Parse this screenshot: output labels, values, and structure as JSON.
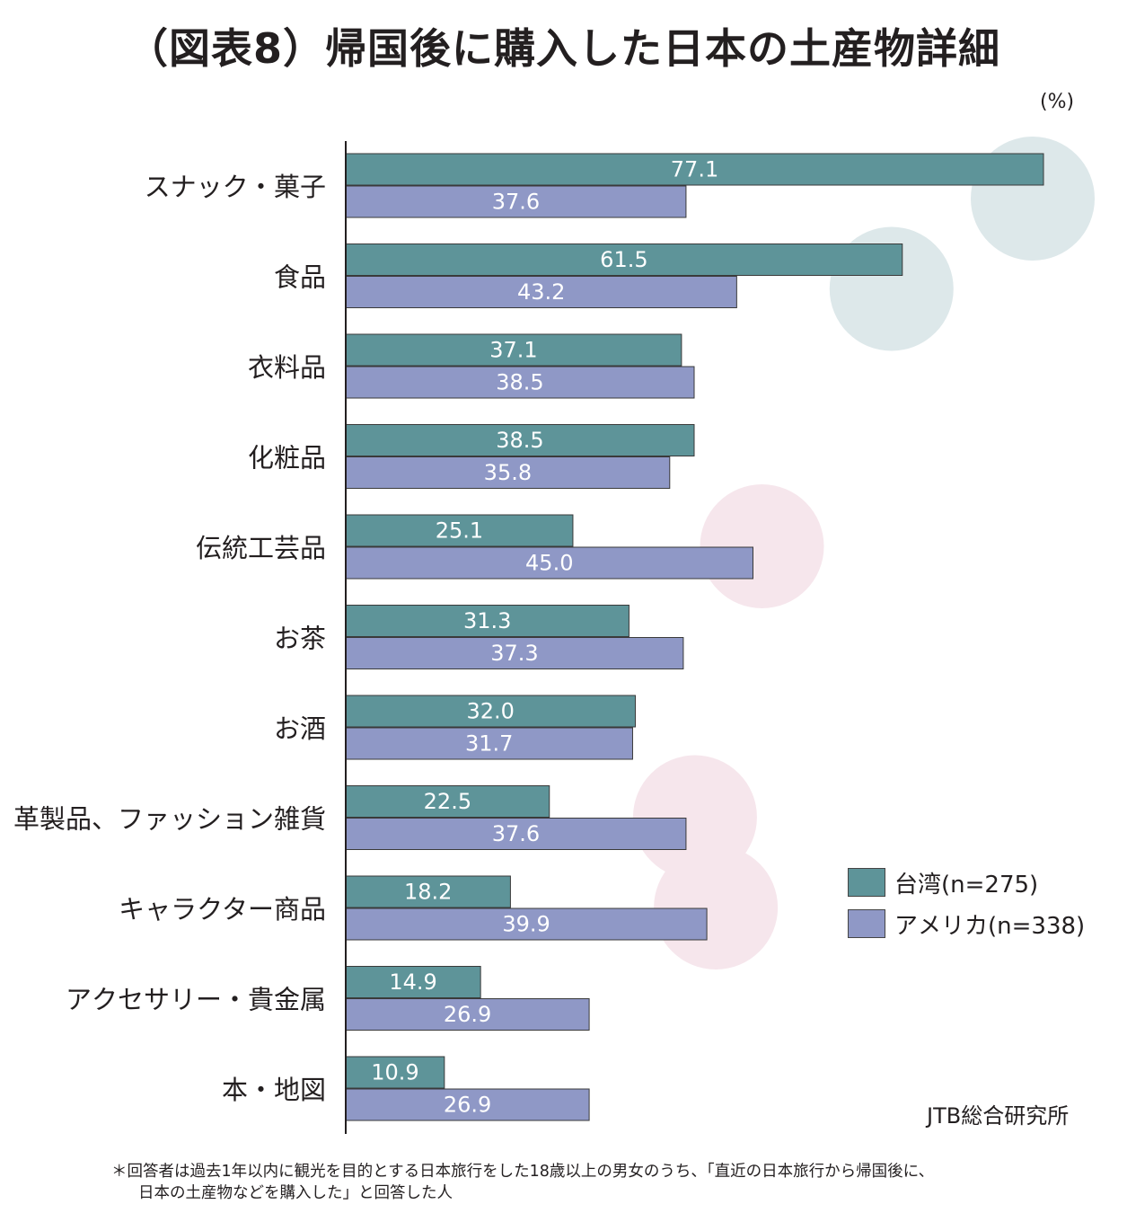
{
  "title": "（図表8）帰国後に購入した日本の土産物詳細",
  "unit": "(%)",
  "source": "JTB総合研究所",
  "footnote": {
    "line1": "＊回答者は過去1年以内に観光を目的とする日本旅行をした18歳以上の男女のうち、「直近の日本旅行から帰国後に、",
    "line2": "日本の土産物などを購入した」と回答した人"
  },
  "colors": {
    "taiwan": "#5e9499",
    "usa": "#8f98c6",
    "highlight_teal": "#dde8ea",
    "highlight_pink": "#f6e6ec"
  },
  "legend": [
    {
      "label": "台湾(n=275)",
      "color": "#5e9499"
    },
    {
      "label": "アメリカ(n=338)",
      "color": "#8f98c6"
    }
  ],
  "chart_data": {
    "type": "bar",
    "orientation": "horizontal",
    "title": "（図表8）帰国後に購入した日本の土産物詳細",
    "categories": [
      "スナック・菓子",
      "食品",
      "衣料品",
      "化粧品",
      "伝統工芸品",
      "お茶",
      "お酒",
      "革製品、ファッション雑貨",
      "キャラクター商品",
      "アクセサリー・貴金属",
      "本・地図"
    ],
    "series": [
      {
        "name": "台湾(n=275)",
        "values": [
          77.1,
          61.5,
          37.1,
          38.5,
          25.1,
          31.3,
          32.0,
          22.5,
          18.2,
          14.9,
          10.9
        ]
      },
      {
        "name": "アメリカ(n=338)",
        "values": [
          37.6,
          43.2,
          38.5,
          35.8,
          45.0,
          37.3,
          31.7,
          37.6,
          39.9,
          26.9,
          26.9
        ]
      }
    ],
    "value_labels": [
      [
        "77.1",
        "61.5",
        "37.1",
        "38.5",
        "25.1",
        "31.3",
        "32.0",
        "22.5",
        "18.2",
        "14.9",
        "10.9"
      ],
      [
        "37.6",
        "43.2",
        "38.5",
        "35.8",
        "45.0",
        "37.3",
        "31.7",
        "37.6",
        "39.9",
        "26.9",
        "26.9"
      ]
    ],
    "xlim": [
      0,
      100
    ],
    "grid": false,
    "legend_position": "right",
    "highlights": [
      {
        "category": "スナック・菓子",
        "series": "台湾(n=275)",
        "color": "teal"
      },
      {
        "category": "食品",
        "series": "台湾(n=275)",
        "color": "teal"
      },
      {
        "category": "伝統工芸品",
        "series": "アメリカ(n=338)",
        "color": "pink"
      },
      {
        "category": "革製品、ファッション雑貨",
        "series": "アメリカ(n=338)",
        "color": "pink"
      },
      {
        "category": "キャラクター商品",
        "series": "アメリカ(n=338)",
        "color": "pink"
      }
    ]
  }
}
